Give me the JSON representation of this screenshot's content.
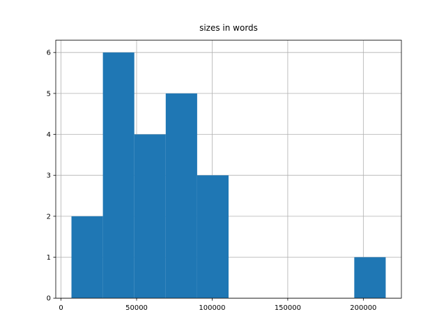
{
  "chart_data": {
    "type": "histogram",
    "title": "sizes in words",
    "bins": [
      6900,
      27690,
      48480,
      69270,
      90060,
      110850,
      131640,
      152430,
      173220,
      194010,
      214800
    ],
    "counts": [
      2,
      6,
      4,
      5,
      3,
      0,
      0,
      0,
      0,
      1
    ],
    "color": "#1f77b4",
    "xlim": [
      -3495,
      225195
    ],
    "xticks": [
      0,
      50000,
      100000,
      150000,
      200000
    ],
    "ylim": [
      0,
      6.3
    ],
    "yticks": [
      0,
      1,
      2,
      3,
      4,
      5,
      6
    ],
    "grid": true
  }
}
